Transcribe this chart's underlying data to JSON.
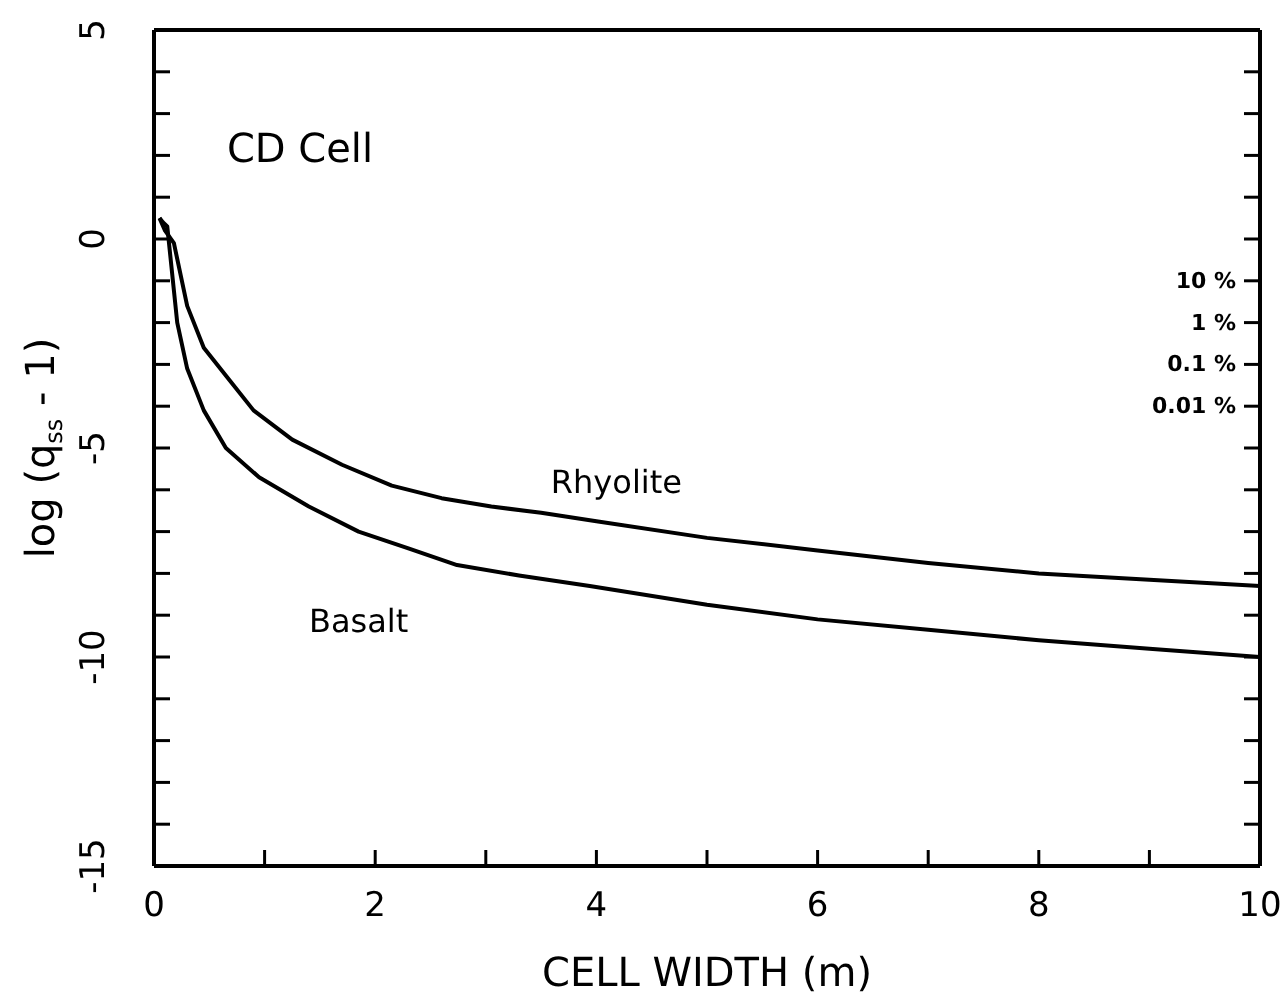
{
  "chart_data": {
    "type": "line",
    "title": "CD Cell",
    "xlabel": "CELL WIDTH  (m)",
    "ylabel": "log (q$_{ss}$ - 1)",
    "series": [
      {
        "name": "Rhyolite",
        "color": "#000000",
        "x": [
          0.05,
          0.1,
          0.18,
          0.3,
          0.45,
          0.66,
          0.9,
          1.25,
          1.7,
          2.15,
          2.6,
          3.05,
          3.5,
          4,
          5,
          6,
          7,
          8,
          9,
          10
        ],
        "values": [
          0.5,
          0.2,
          -0.1,
          -1.6,
          -2.6,
          -3.3,
          -4.1,
          -4.8,
          -5.4,
          -5.9,
          -6.2,
          -6.4,
          -6.55,
          -6.75,
          -7.15,
          -7.45,
          -7.75,
          -8,
          -8.15,
          -8.3
        ]
      },
      {
        "name": "Basalt",
        "color": "#000000",
        "x": [
          0.05,
          0.08,
          0.12,
          0.21,
          0.3,
          0.45,
          0.65,
          0.95,
          1.4,
          1.85,
          2.3,
          2.74,
          3.3,
          3.94,
          5,
          6,
          7,
          8,
          9,
          10
        ],
        "values": [
          0.5,
          0.4,
          0.3,
          -2.0,
          -3.1,
          -4.1,
          -5.0,
          -5.7,
          -6.4,
          -7.0,
          -7.4,
          -7.8,
          -8.05,
          -8.3,
          -8.75,
          -9.1,
          -9.35,
          -9.6,
          -9.8,
          -10
        ]
      }
    ],
    "xlim": [
      0,
      10
    ],
    "xticks": [
      0,
      {
        "value": 1,
        "label": null
      },
      2,
      {
        "value": 3,
        "label": null
      },
      4,
      {
        "value": 5,
        "label": null
      },
      6,
      {
        "value": 7,
        "label": null
      },
      8,
      {
        "value": 9,
        "label": null
      },
      10
    ],
    "ylim": [
      -15,
      5
    ],
    "yticks": [
      -15,
      {
        "value": -14,
        "label": null
      },
      {
        "value": -13,
        "label": null
      },
      {
        "value": -12,
        "label": null
      },
      {
        "value": -11,
        "label": null
      },
      -10,
      {
        "value": -9,
        "label": null
      },
      {
        "value": -8,
        "label": null
      },
      {
        "value": -7,
        "label": null
      },
      {
        "value": -6,
        "label": null
      },
      -5,
      {
        "value": -4,
        "label": null
      },
      {
        "value": -3,
        "label": null
      },
      {
        "value": -2,
        "label": null
      },
      {
        "value": -1,
        "label": null
      },
      0,
      {
        "value": 1,
        "label": null
      },
      {
        "value": 2,
        "label": null
      },
      {
        "value": 3,
        "label": null
      },
      {
        "value": 4,
        "label": null
      },
      5
    ],
    "log": "y2",
    "y2lim": [
      1e-13,
      10000000
    ],
    "y2ticks": [
      {
        "value": 10,
        "label": "10 %"
      },
      {
        "value": 1,
        "label": "1 %"
      },
      {
        "value": 0.1,
        "label": "0.1 %"
      },
      {
        "value": 0.01,
        "label": "0.01 %"
      }
    ]
  }
}
